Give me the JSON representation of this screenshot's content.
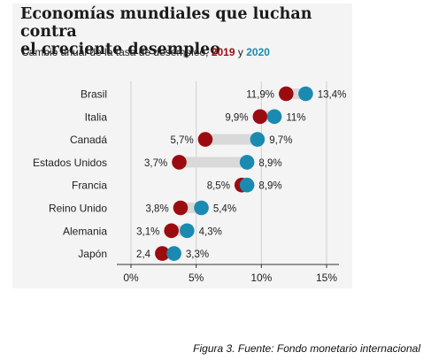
{
  "title_line1": "Economías mundiales que luchan contra",
  "title_line2": "el creciente desempleo",
  "subtitle_prefix": "Cambio anual de la tasa de desempleo,",
  "subtitle_year1": "2019",
  "subtitle_joiner": "y",
  "subtitle_year2": "2020",
  "caption": "Figura 3. Fuente: Fondo monetario internacional",
  "colors": {
    "panel": "#f4f4f4",
    "series_2019": "#9b0c10",
    "series_2020": "#1b8ab0",
    "connector": "#d9d9d9",
    "grid": "#cfcfcf",
    "axis": "#333333"
  },
  "chart_data": {
    "type": "dumbbell",
    "categories": [
      "Brasil",
      "Italia",
      "Canadá",
      "Estados Unidos",
      "Francia",
      "Reino Unido",
      "Alemania",
      "Japón"
    ],
    "series": [
      {
        "name": "2019",
        "values": [
          11.9,
          9.9,
          5.7,
          3.7,
          8.5,
          3.8,
          3.1,
          2.4
        ],
        "labels": [
          "11,9%",
          "9,9%",
          "5,7%",
          "3,7%",
          "8,5%",
          "3,8%",
          "3,1%",
          "2,4"
        ]
      },
      {
        "name": "2020",
        "values": [
          13.4,
          11,
          9.7,
          8.9,
          8.9,
          5.4,
          4.3,
          3.3
        ],
        "labels": [
          "13,4%",
          "11%",
          "9,7%",
          "8,9%",
          "8,9%",
          "5,4%",
          "4,3%",
          "3,3%"
        ]
      }
    ],
    "xlim": [
      0,
      15
    ],
    "xticks": [
      0,
      5,
      10,
      15
    ],
    "xtick_labels": [
      "0%",
      "5%",
      "10%",
      "15%"
    ],
    "grid": true
  }
}
